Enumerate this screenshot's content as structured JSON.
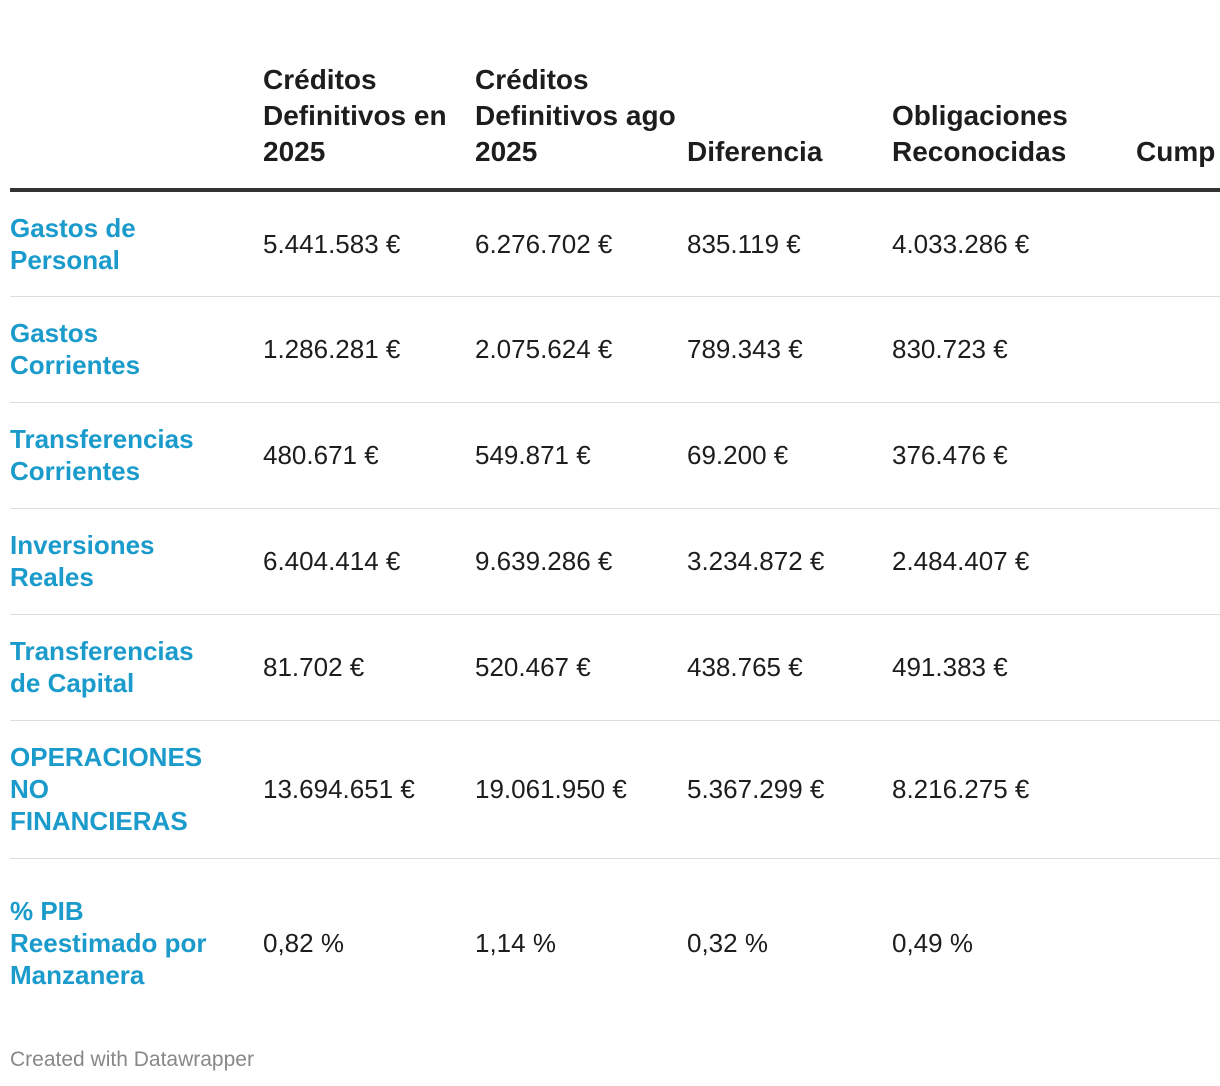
{
  "chart_data": {
    "type": "table",
    "columns": [
      "",
      "Créditos Definitivos en 2025",
      "Créditos Definitivos ago 2025",
      "Diferencia",
      "Obligaciones Reconocidas",
      "Cump"
    ],
    "rows": [
      {
        "label": "Gastos de Personal",
        "values": [
          "5.441.583 €",
          "6.276.702 €",
          "835.119 €",
          "4.033.286 €",
          ""
        ]
      },
      {
        "label": "Gastos Corrientes",
        "values": [
          "1.286.281 €",
          "2.075.624 €",
          "789.343 €",
          "830.723 €",
          ""
        ]
      },
      {
        "label": "Transferencias Corrientes",
        "values": [
          "480.671 €",
          "549.871 €",
          "69.200 €",
          "376.476 €",
          ""
        ]
      },
      {
        "label": "Inversiones Reales",
        "values": [
          "6.404.414 €",
          "9.639.286 €",
          "3.234.872 €",
          "2.484.407 €",
          ""
        ]
      },
      {
        "label": "Transferencias de Capital",
        "values": [
          "81.702 €",
          "520.467 €",
          "438.765 €",
          "491.383 €",
          ""
        ]
      },
      {
        "label": "OPERACIONES NO FINANCIERAS",
        "values": [
          "13.694.651 €",
          "19.061.950 €",
          "5.367.299 €",
          "8.216.275 €",
          ""
        ]
      },
      {
        "label": "% PIB Reestimado por Manzanera",
        "values": [
          "0,82 %",
          "1,14 %",
          "0,32 %",
          "0,49 %",
          ""
        ]
      }
    ]
  },
  "footer": {
    "credit": "Created with Datawrapper"
  },
  "colors": {
    "row_label": "#1a9bcb",
    "text": "#1d1d1d",
    "header_rule": "#333333",
    "row_rule": "#dddddd",
    "footer": "#888888"
  }
}
